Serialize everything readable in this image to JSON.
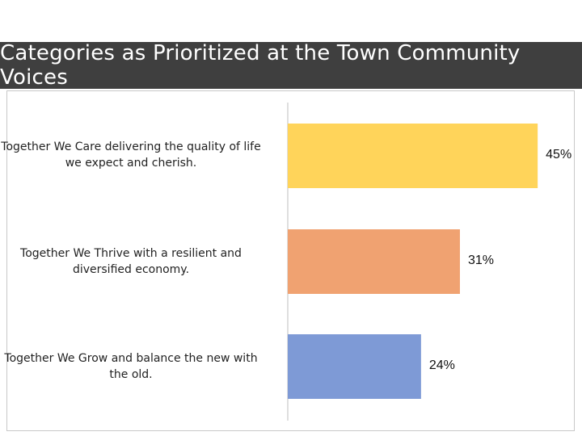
{
  "header": {
    "title": "Categories as Prioritized at the Town Community Voices"
  },
  "chart_data": {
    "type": "bar",
    "orientation": "horizontal",
    "title": "Categories as Prioritized at the Town Community Voices",
    "categories": [
      "Together We Care delivering the quality of life we expect and cherish.",
      "Together We Thrive with a resilient and diversified economy.",
      "Together We Grow and balance the new with the old."
    ],
    "values": [
      45,
      31,
      24
    ],
    "value_labels": [
      "45%",
      "31%",
      "24%"
    ],
    "colors": [
      "#ffd45a",
      "#f0a271",
      "#7e9ad6"
    ],
    "xlim": [
      0,
      50
    ],
    "grid": false,
    "legend": "none"
  }
}
